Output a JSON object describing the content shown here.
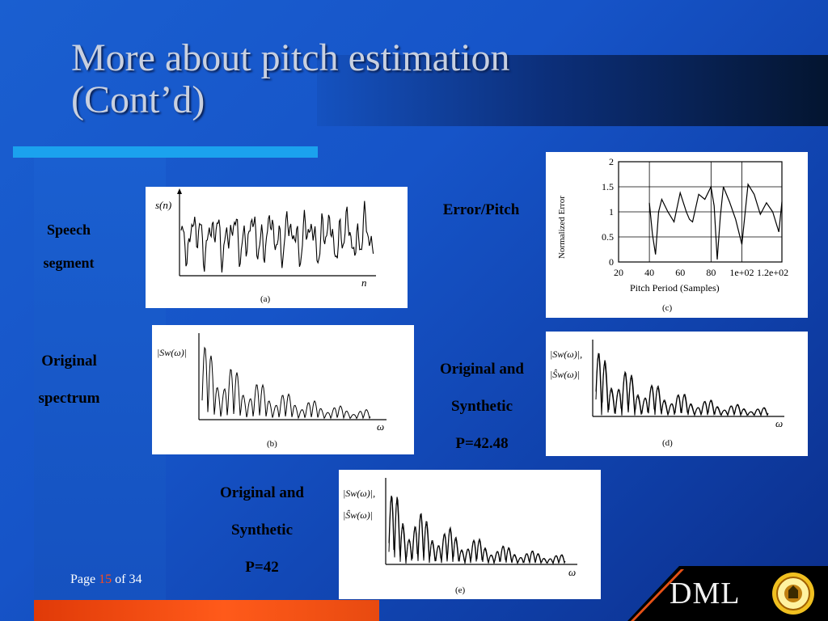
{
  "title_line1": "More about pitch estimation",
  "title_line2": "(Cont’d)",
  "labels": {
    "speech_1": "Speech",
    "speech_2": "segment",
    "orig_1": "Original",
    "orig_2": "spectrum",
    "errpitch": "Error/Pitch",
    "os1_1": "Original and",
    "os1_2": "Synthetic",
    "os1_3": "P=42.48",
    "os2_1": "Original and",
    "os2_2": "Synthetic",
    "os2_3": "P=42"
  },
  "panels": {
    "a": {
      "ylabel": "s(n)",
      "xlabel": "n",
      "caption": "(a)"
    },
    "b": {
      "ylabel": "|Sw(ω)|",
      "xlabel": "ω",
      "caption": "(b)"
    },
    "c": {
      "ylabel": "Normalized Error",
      "xlabel": "Pitch Period (Samples)",
      "caption": "(c)",
      "yticks": [
        "2",
        "1.5",
        "1",
        "0.5",
        "0"
      ],
      "xticks": [
        "20",
        "40",
        "60",
        "80",
        "1e+02",
        "1.2e+02"
      ]
    },
    "d": {
      "ylabel1": "|Sw(ω)|,",
      "ylabel2": "|Ŝw(ω)|",
      "xlabel": "ω",
      "caption": "(d)"
    },
    "e": {
      "ylabel1": "|Sw(ω)|,",
      "ylabel2": "|Ŝw(ω)|",
      "xlabel": "ω",
      "caption": "(e)"
    }
  },
  "chart_data": [
    {
      "type": "line",
      "title": "",
      "ylabel": "Normalized Error",
      "xlabel": "Pitch Period (Samples)",
      "xlim": [
        20,
        126
      ],
      "ylim": [
        0,
        2
      ],
      "grid": true,
      "x": [
        40,
        42,
        44,
        46,
        48,
        52,
        56,
        60,
        64,
        66,
        68,
        72,
        76,
        80,
        82,
        84,
        86,
        88,
        92,
        96,
        100,
        104,
        108,
        112,
        116,
        120,
        124,
        126
      ],
      "values": [
        1.18,
        0.55,
        0.15,
        1.0,
        1.25,
        1.0,
        0.8,
        1.38,
        1.0,
        0.85,
        0.8,
        1.35,
        1.25,
        1.5,
        1.12,
        0.05,
        0.9,
        1.5,
        1.2,
        0.85,
        0.35,
        1.55,
        1.35,
        0.95,
        1.18,
        1.0,
        0.6,
        1.2
      ]
    },
    {
      "type": "line",
      "title": "",
      "ylabel": "s(n)",
      "xlabel": "n",
      "series": [
        {
          "values": []
        }
      ]
    }
  ],
  "pager": {
    "prefix": "Page",
    "current": "15",
    "sep": "of",
    "total": "34"
  },
  "logo": {
    "text": "DML",
    "accent": "#ff5a1a"
  }
}
